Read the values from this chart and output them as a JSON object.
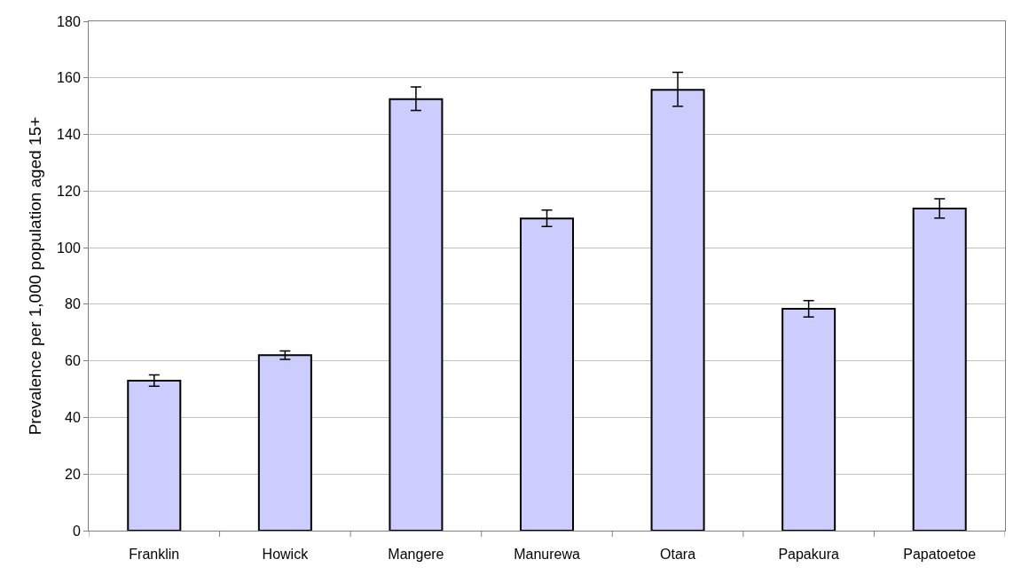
{
  "chart_data": {
    "type": "bar",
    "ylabel": "Prevalence per 1,000 population aged 15+",
    "categories": [
      "Franklin",
      "Howick",
      "Mangere",
      "Manurewa",
      "Otara",
      "Papakura",
      "Papatoetoe"
    ],
    "values": [
      53,
      62,
      152.5,
      110.3,
      155.8,
      78.4,
      113.8
    ],
    "errors": [
      [
        51,
        55
      ],
      [
        60.5,
        63.5
      ],
      [
        148.5,
        156.8
      ],
      [
        107.5,
        113.3
      ],
      [
        150,
        162
      ],
      [
        75.5,
        81.3
      ],
      [
        110.5,
        117.3
      ]
    ],
    "color": "#ccccff",
    "ylim": [
      0,
      180
    ],
    "yticks": [
      0,
      20,
      40,
      60,
      80,
      100,
      120,
      140,
      160,
      180
    ],
    "grid": "y"
  }
}
